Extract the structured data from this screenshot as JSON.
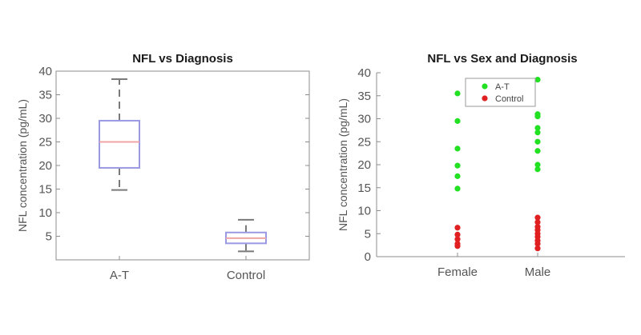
{
  "chart_data": [
    {
      "type": "box",
      "title": "NFL vs Diagnosis",
      "xlabel": "",
      "ylabel": "NFL concentration (pg/mL)",
      "ylim": [
        0,
        40
      ],
      "yticks": [
        5,
        10,
        15,
        20,
        25,
        30,
        35,
        40
      ],
      "categories": [
        "A-T",
        "Control"
      ],
      "boxes": [
        {
          "category": "A-T",
          "whisker_low": 14.8,
          "q1": 19.5,
          "median": 25,
          "q3": 29.5,
          "whisker_high": 38.3
        },
        {
          "category": "Control",
          "whisker_low": 1.8,
          "q1": 3.5,
          "median": 4.6,
          "q3": 5.8,
          "whisker_high": 8.5
        }
      ],
      "colors": {
        "box": "#9a9ae4",
        "median": "#f0a5a5",
        "whisker": "#7a7a7a",
        "axis": "#8c8c8c"
      },
      "grid": false
    },
    {
      "type": "scatter",
      "title": "NFL vs Sex and Diagnosis",
      "xlabel": "",
      "ylabel": "NFL concentration (pg/mL)",
      "ylim": [
        0,
        40
      ],
      "yticks": [
        0,
        5,
        10,
        15,
        20,
        25,
        30,
        35,
        40
      ],
      "categories": [
        "Female",
        "Male"
      ],
      "legend_position": "top-left",
      "series": [
        {
          "name": "A-T",
          "color": "#22e022",
          "points": [
            {
              "x": "Female",
              "y": 35.5
            },
            {
              "x": "Female",
              "y": 29.5
            },
            {
              "x": "Female",
              "y": 23.5
            },
            {
              "x": "Female",
              "y": 19.8
            },
            {
              "x": "Female",
              "y": 17.5
            },
            {
              "x": "Female",
              "y": 14.8
            },
            {
              "x": "Male",
              "y": 38.5
            },
            {
              "x": "Male",
              "y": 31
            },
            {
              "x": "Male",
              "y": 30.5
            },
            {
              "x": "Male",
              "y": 28
            },
            {
              "x": "Male",
              "y": 27
            },
            {
              "x": "Male",
              "y": 25
            },
            {
              "x": "Male",
              "y": 23
            },
            {
              "x": "Male",
              "y": 20
            },
            {
              "x": "Male",
              "y": 19
            }
          ]
        },
        {
          "name": "Control",
          "color": "#e02020",
          "points": [
            {
              "x": "Female",
              "y": 6.3
            },
            {
              "x": "Female",
              "y": 4.8
            },
            {
              "x": "Female",
              "y": 3.8
            },
            {
              "x": "Female",
              "y": 2.8
            },
            {
              "x": "Female",
              "y": 2.3
            },
            {
              "x": "Male",
              "y": 8.5
            },
            {
              "x": "Male",
              "y": 7.5
            },
            {
              "x": "Male",
              "y": 6.5
            },
            {
              "x": "Male",
              "y": 5.8
            },
            {
              "x": "Male",
              "y": 5.0
            },
            {
              "x": "Male",
              "y": 4.3
            },
            {
              "x": "Male",
              "y": 3.5
            },
            {
              "x": "Male",
              "y": 2.8
            },
            {
              "x": "Male",
              "y": 1.8
            }
          ]
        }
      ],
      "colors": {
        "axis": "#8c8c8c"
      },
      "grid": false
    }
  ]
}
